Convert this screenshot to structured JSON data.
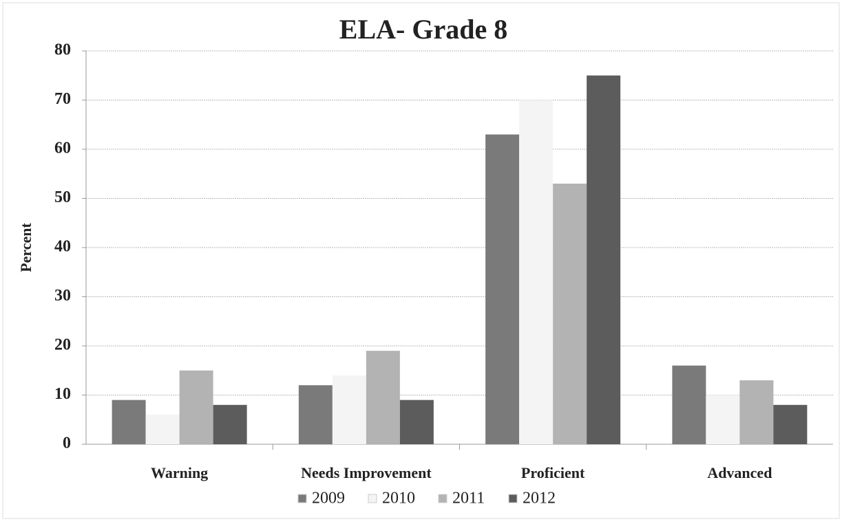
{
  "chart_data": {
    "type": "bar",
    "title": "ELA- Grade 8",
    "ylabel": "Percent",
    "categories": [
      "Warning",
      "Needs Improvement",
      "Proficient",
      "Advanced"
    ],
    "series": [
      {
        "name": "2009",
        "color": "#7a7a7a",
        "values": [
          9,
          12,
          63,
          16
        ]
      },
      {
        "name": "2010",
        "color": "#f4f4f4",
        "values": [
          6,
          14,
          70,
          10
        ]
      },
      {
        "name": "2011",
        "color": "#b3b3b3",
        "values": [
          15,
          19,
          53,
          13
        ]
      },
      {
        "name": "2012",
        "color": "#5c5c5c",
        "values": [
          8,
          9,
          75,
          8
        ]
      }
    ],
    "ylim": [
      0,
      80
    ],
    "yticks": [
      0,
      10,
      20,
      30,
      40,
      50,
      60,
      70,
      80
    ],
    "grid": true,
    "legend": "bottom"
  }
}
